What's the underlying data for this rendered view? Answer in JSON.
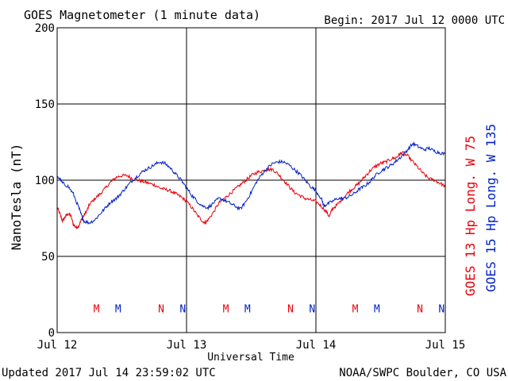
{
  "header": {
    "title": "GOES Magnetometer (1 minute data)",
    "begin_label": "Begin:  2017 Jul 12 0000 UTC"
  },
  "footer": {
    "updated": "Updated 2017 Jul 14 23:59:02 UTC",
    "credit": "NOAA/SWPC Boulder, CO USA"
  },
  "colors": {
    "goes13": "#e8000b",
    "goes15": "#0020c8",
    "axis": "#000000"
  },
  "chart_data": {
    "type": "line",
    "title": "GOES Magnetometer (1 minute data)",
    "xlabel": "Universal Time",
    "ylabel": "NanoTesla (nT)",
    "xlim": [
      0,
      72
    ],
    "ylim": [
      0,
      200
    ],
    "x_unit": "hours since 2017 Jul 12 0000 UTC",
    "x_ticks": [
      {
        "value": 0,
        "label": "Jul 12"
      },
      {
        "value": 24,
        "label": "Jul 13"
      },
      {
        "value": 48,
        "label": "Jul 14"
      },
      {
        "value": 72,
        "label": "Jul 15"
      }
    ],
    "y_ticks": [
      {
        "value": 0,
        "label": "0"
      },
      {
        "value": 50,
        "label": "50"
      },
      {
        "value": 100,
        "label": "100"
      },
      {
        "value": 150,
        "label": "150"
      },
      {
        "value": 200,
        "label": "200"
      }
    ],
    "grid": true,
    "legend_position": "right-vertical",
    "series": [
      {
        "name": "GOES 13 Hp  Long. W 75",
        "color": "#e8000b",
        "points": [
          [
            0,
            82
          ],
          [
            0.5,
            78
          ],
          [
            1,
            73
          ],
          [
            1.5,
            76
          ],
          [
            2,
            78
          ],
          [
            2.5,
            77
          ],
          [
            3,
            71
          ],
          [
            3.5,
            69
          ],
          [
            4,
            70
          ],
          [
            4.5,
            74
          ],
          [
            5,
            77
          ],
          [
            5.5,
            80
          ],
          [
            6,
            84
          ],
          [
            7,
            88
          ],
          [
            8,
            91
          ],
          [
            9,
            95
          ],
          [
            10,
            99
          ],
          [
            11,
            102
          ],
          [
            12,
            103
          ],
          [
            13,
            103
          ],
          [
            14,
            101
          ],
          [
            15,
            100
          ],
          [
            16,
            99
          ],
          [
            17,
            98
          ],
          [
            18,
            97
          ],
          [
            19,
            95
          ],
          [
            20,
            94
          ],
          [
            21,
            93
          ],
          [
            22,
            91
          ],
          [
            23,
            89
          ],
          [
            24,
            86
          ],
          [
            25,
            82
          ],
          [
            26,
            77
          ],
          [
            27,
            73
          ],
          [
            27.5,
            72
          ],
          [
            28,
            74
          ],
          [
            29,
            79
          ],
          [
            30,
            85
          ],
          [
            31,
            88
          ],
          [
            32,
            91
          ],
          [
            33,
            94
          ],
          [
            34,
            97
          ],
          [
            35,
            100
          ],
          [
            36,
            103
          ],
          [
            37,
            105
          ],
          [
            38,
            106
          ],
          [
            39,
            107
          ],
          [
            40,
            107
          ],
          [
            41,
            104
          ],
          [
            42,
            100
          ],
          [
            43,
            96
          ],
          [
            44,
            92
          ],
          [
            45,
            90
          ],
          [
            46,
            88
          ],
          [
            47,
            87
          ],
          [
            48,
            86
          ],
          [
            49,
            83
          ],
          [
            50,
            79
          ],
          [
            50.5,
            76
          ],
          [
            51,
            81
          ],
          [
            52,
            84
          ],
          [
            53,
            88
          ],
          [
            54,
            92
          ],
          [
            55,
            95
          ],
          [
            56,
            98
          ],
          [
            57,
            102
          ],
          [
            58,
            106
          ],
          [
            59,
            109
          ],
          [
            60,
            111
          ],
          [
            61,
            112
          ],
          [
            62,
            114
          ],
          [
            63,
            115
          ],
          [
            63.5,
            117
          ],
          [
            64,
            118
          ],
          [
            65,
            116
          ],
          [
            66,
            112
          ],
          [
            67,
            108
          ],
          [
            68,
            104
          ],
          [
            69,
            101
          ],
          [
            70,
            100
          ],
          [
            71,
            98
          ],
          [
            72,
            96
          ]
        ]
      },
      {
        "name": "GOES 15 Hp  Long. W 135",
        "color": "#0020c8",
        "points": [
          [
            0,
            102
          ],
          [
            0.5,
            101
          ],
          [
            1,
            98
          ],
          [
            2,
            96
          ],
          [
            3,
            91
          ],
          [
            4,
            82
          ],
          [
            4.5,
            77
          ],
          [
            5,
            73
          ],
          [
            6,
            72
          ],
          [
            7,
            74
          ],
          [
            8,
            78
          ],
          [
            9,
            82
          ],
          [
            10,
            86
          ],
          [
            11,
            88
          ],
          [
            12,
            92
          ],
          [
            13,
            96
          ],
          [
            14,
            100
          ],
          [
            15,
            103
          ],
          [
            16,
            106
          ],
          [
            17,
            108
          ],
          [
            18,
            110
          ],
          [
            19,
            112
          ],
          [
            20,
            111
          ],
          [
            21,
            108
          ],
          [
            22,
            104
          ],
          [
            23,
            100
          ],
          [
            24,
            95
          ],
          [
            25,
            90
          ],
          [
            26,
            86
          ],
          [
            27,
            83
          ],
          [
            28,
            82
          ],
          [
            29,
            85
          ],
          [
            30,
            88
          ],
          [
            31,
            87
          ],
          [
            32,
            85
          ],
          [
            33,
            83
          ],
          [
            34,
            81
          ],
          [
            35,
            86
          ],
          [
            36,
            92
          ],
          [
            37,
            99
          ],
          [
            38,
            104
          ],
          [
            39,
            108
          ],
          [
            40,
            111
          ],
          [
            41,
            112
          ],
          [
            42,
            112
          ],
          [
            43,
            110
          ],
          [
            44,
            107
          ],
          [
            45,
            104
          ],
          [
            46,
            100
          ],
          [
            47,
            96
          ],
          [
            48,
            93
          ],
          [
            49,
            88
          ],
          [
            49.5,
            83
          ],
          [
            50,
            84
          ],
          [
            51,
            86
          ],
          [
            52,
            88
          ],
          [
            53,
            88
          ],
          [
            54,
            89
          ],
          [
            55,
            91
          ],
          [
            56,
            94
          ],
          [
            57,
            96
          ],
          [
            58,
            99
          ],
          [
            59,
            103
          ],
          [
            60,
            106
          ],
          [
            61,
            108
          ],
          [
            62,
            110
          ],
          [
            63,
            113
          ],
          [
            64,
            116
          ],
          [
            65,
            120
          ],
          [
            66,
            124
          ],
          [
            67,
            122
          ],
          [
            68,
            120
          ],
          [
            69,
            121
          ],
          [
            70,
            119
          ],
          [
            71,
            118
          ],
          [
            72,
            117
          ]
        ]
      }
    ],
    "markers": [
      {
        "label": "M",
        "x": 7.3,
        "color": "#e8000b"
      },
      {
        "label": "M",
        "x": 11.3,
        "color": "#0020c8"
      },
      {
        "label": "N",
        "x": 19.3,
        "color": "#e8000b"
      },
      {
        "label": "N",
        "x": 23.3,
        "color": "#0020c8"
      },
      {
        "label": "M",
        "x": 31.3,
        "color": "#e8000b"
      },
      {
        "label": "M",
        "x": 35.3,
        "color": "#0020c8"
      },
      {
        "label": "N",
        "x": 43.3,
        "color": "#e8000b"
      },
      {
        "label": "N",
        "x": 47.3,
        "color": "#0020c8"
      },
      {
        "label": "M",
        "x": 55.3,
        "color": "#e8000b"
      },
      {
        "label": "M",
        "x": 59.3,
        "color": "#0020c8"
      },
      {
        "label": "N",
        "x": 67.3,
        "color": "#e8000b"
      },
      {
        "label": "N",
        "x": 71.3,
        "color": "#0020c8"
      }
    ],
    "marker_y": 16
  }
}
